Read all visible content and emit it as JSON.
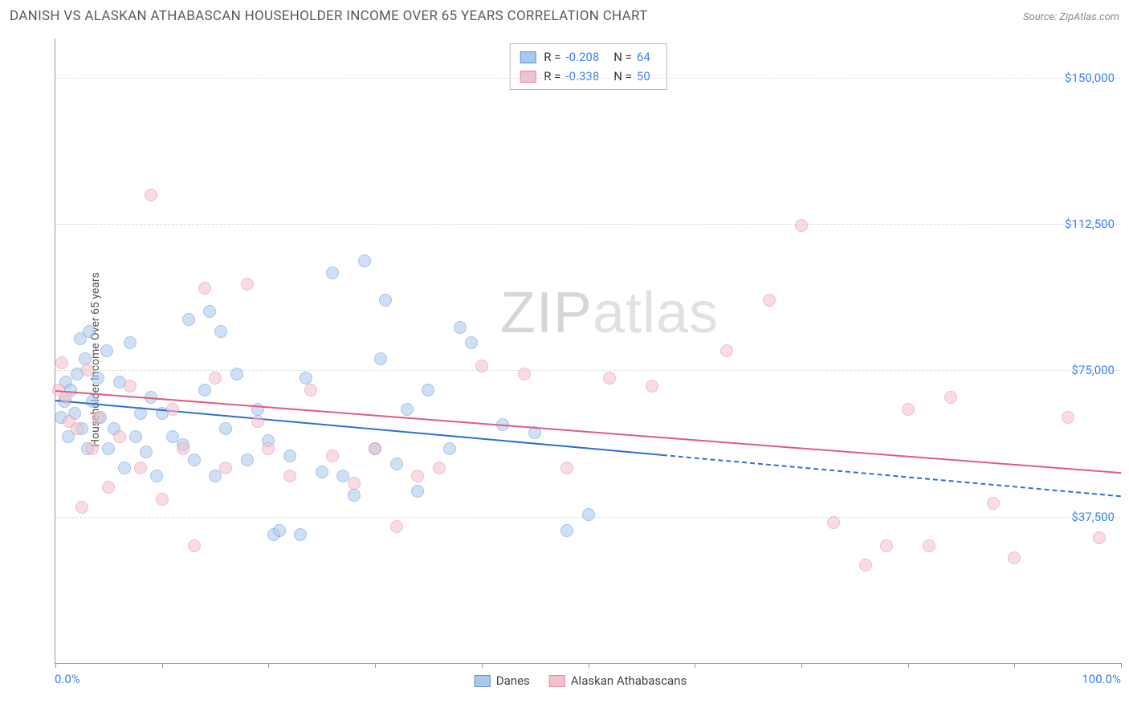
{
  "title": "DANISH VS ALASKAN ATHABASCAN HOUSEHOLDER INCOME OVER 65 YEARS CORRELATION CHART",
  "source": "Source: ZipAtlas.com",
  "ylabel": "Householder Income Over 65 years",
  "watermark": {
    "part1": "ZIP",
    "part2": "atlas"
  },
  "chart": {
    "type": "scatter",
    "background_color": "#ffffff",
    "grid_color": "#dddddd",
    "axis_color": "#999999",
    "xlim": [
      0,
      100
    ],
    "ylim": [
      0,
      160000
    ],
    "xtick_labels": {
      "min": "0.0%",
      "max": "100.0%"
    },
    "xtick_positions": [
      0,
      10,
      20,
      30,
      40,
      50,
      60,
      70,
      80,
      90,
      100
    ],
    "yticks": [
      {
        "v": 37500,
        "label": "$37,500"
      },
      {
        "v": 75000,
        "label": "$75,000"
      },
      {
        "v": 112500,
        "label": "$112,500"
      },
      {
        "v": 150000,
        "label": "$150,000"
      }
    ],
    "label_color": "#3b82f6",
    "label_fontsize": 15,
    "marker_radius": 8,
    "marker_border_width": 1.5,
    "series": [
      {
        "name": "Danes",
        "fill": "#a9c8ec",
        "stroke": "#5d94d6",
        "fill_opacity": 0.55,
        "R": "-0.208",
        "N": "64",
        "trend": {
          "x0": 0,
          "y0": 67500,
          "x1": 100,
          "y1": 43000,
          "dash_after_x": 57,
          "color": "#2f6fd0"
        },
        "points": [
          [
            0.5,
            63000
          ],
          [
            0.8,
            67000
          ],
          [
            1.0,
            72000
          ],
          [
            1.2,
            58000
          ],
          [
            1.4,
            70000
          ],
          [
            1.8,
            64000
          ],
          [
            2.0,
            74000
          ],
          [
            2.3,
            83000
          ],
          [
            2.5,
            60000
          ],
          [
            2.8,
            78000
          ],
          [
            3.0,
            55000
          ],
          [
            3.2,
            85000
          ],
          [
            3.5,
            67000
          ],
          [
            4.0,
            73000
          ],
          [
            4.2,
            63000
          ],
          [
            4.8,
            80000
          ],
          [
            5.0,
            55000
          ],
          [
            5.5,
            60000
          ],
          [
            6.0,
            72000
          ],
          [
            6.5,
            50000
          ],
          [
            7.0,
            82000
          ],
          [
            7.5,
            58000
          ],
          [
            8.0,
            64000
          ],
          [
            8.5,
            54000
          ],
          [
            9.0,
            68000
          ],
          [
            9.5,
            48000
          ],
          [
            10,
            64000
          ],
          [
            11,
            58000
          ],
          [
            12,
            56000
          ],
          [
            12.5,
            88000
          ],
          [
            13,
            52000
          ],
          [
            14,
            70000
          ],
          [
            14.5,
            90000
          ],
          [
            15,
            48000
          ],
          [
            15.5,
            85000
          ],
          [
            16,
            60000
          ],
          [
            17,
            74000
          ],
          [
            18,
            52000
          ],
          [
            19,
            65000
          ],
          [
            20,
            57000
          ],
          [
            20.5,
            33000
          ],
          [
            21,
            34000
          ],
          [
            22,
            53000
          ],
          [
            23,
            33000
          ],
          [
            23.5,
            73000
          ],
          [
            25,
            49000
          ],
          [
            26,
            100000
          ],
          [
            27,
            48000
          ],
          [
            28,
            43000
          ],
          [
            29,
            103000
          ],
          [
            30,
            55000
          ],
          [
            30.5,
            78000
          ],
          [
            31,
            93000
          ],
          [
            32,
            51000
          ],
          [
            33,
            65000
          ],
          [
            34,
            44000
          ],
          [
            35,
            70000
          ],
          [
            37,
            55000
          ],
          [
            38,
            86000
          ],
          [
            39,
            82000
          ],
          [
            42,
            61000
          ],
          [
            45,
            59000
          ],
          [
            48,
            34000
          ],
          [
            50,
            38000
          ]
        ]
      },
      {
        "name": "Alaskan Athabascans",
        "fill": "#f4c0cc",
        "stroke": "#e389a0",
        "fill_opacity": 0.55,
        "R": "-0.338",
        "N": "50",
        "trend": {
          "x0": 0,
          "y0": 70000,
          "x1": 100,
          "y1": 49000,
          "dash_after_x": null,
          "color": "#e15b7e"
        },
        "points": [
          [
            0.3,
            70000
          ],
          [
            0.6,
            77000
          ],
          [
            1.0,
            68000
          ],
          [
            1.3,
            62000
          ],
          [
            2.0,
            60000
          ],
          [
            2.5,
            40000
          ],
          [
            3.0,
            75000
          ],
          [
            3.5,
            55000
          ],
          [
            4.0,
            63000
          ],
          [
            5.0,
            45000
          ],
          [
            6.0,
            58000
          ],
          [
            7.0,
            71000
          ],
          [
            8.0,
            50000
          ],
          [
            9.0,
            120000
          ],
          [
            10,
            42000
          ],
          [
            11,
            65000
          ],
          [
            12,
            55000
          ],
          [
            13,
            30000
          ],
          [
            14,
            96000
          ],
          [
            15,
            73000
          ],
          [
            16,
            50000
          ],
          [
            18,
            97000
          ],
          [
            19,
            62000
          ],
          [
            20,
            55000
          ],
          [
            22,
            48000
          ],
          [
            24,
            70000
          ],
          [
            26,
            53000
          ],
          [
            28,
            46000
          ],
          [
            30,
            55000
          ],
          [
            32,
            35000
          ],
          [
            34,
            48000
          ],
          [
            36,
            50000
          ],
          [
            40,
            76000
          ],
          [
            44,
            74000
          ],
          [
            48,
            50000
          ],
          [
            52,
            73000
          ],
          [
            56,
            71000
          ],
          [
            63,
            80000
          ],
          [
            67,
            93000
          ],
          [
            70,
            112000
          ],
          [
            73,
            36000
          ],
          [
            76,
            25000
          ],
          [
            78,
            30000
          ],
          [
            80,
            65000
          ],
          [
            82,
            30000
          ],
          [
            84,
            68000
          ],
          [
            88,
            41000
          ],
          [
            90,
            27000
          ],
          [
            95,
            63000
          ],
          [
            98,
            32000
          ]
        ]
      }
    ]
  },
  "legend": {
    "items": [
      {
        "label": "Danes",
        "fill": "#a9c8ec",
        "stroke": "#5d94d6"
      },
      {
        "label": "Alaskan Athabascans",
        "fill": "#f4c0cc",
        "stroke": "#e389a0"
      }
    ]
  }
}
